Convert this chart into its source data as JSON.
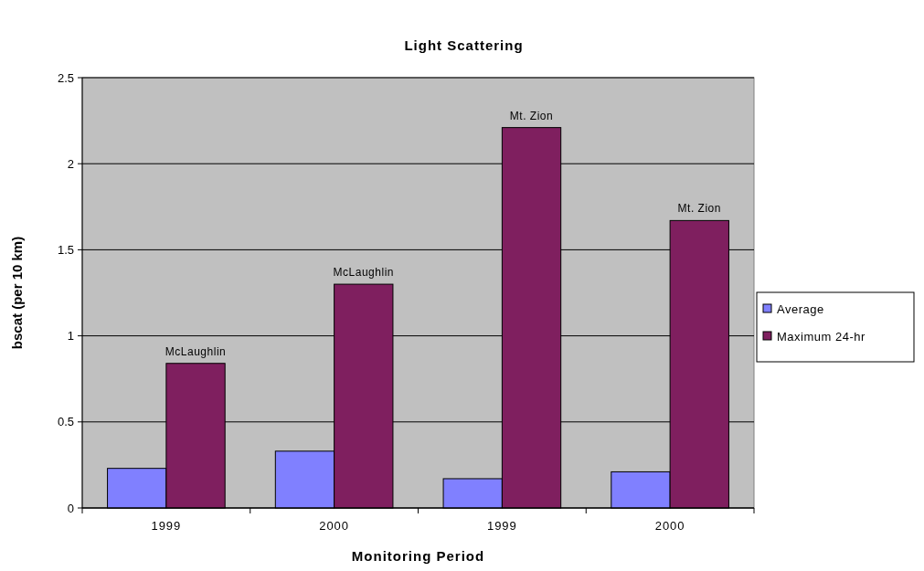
{
  "chart_data": {
    "type": "bar",
    "title": "Light Scattering",
    "xlabel": "Monitoring Period",
    "ylabel": "bscat (per 10 km)",
    "categories": [
      "1999",
      "2000",
      "1999",
      "2000"
    ],
    "series": [
      {
        "name": "Average",
        "color": "#8080ff",
        "values": [
          0.23,
          0.33,
          0.17,
          0.21
        ]
      },
      {
        "name": "Maximum 24-hr",
        "color": "#7f1f5f",
        "values": [
          0.84,
          1.3,
          2.21,
          1.67
        ]
      }
    ],
    "annotations": [
      "McLaughlin",
      "McLaughlin",
      "Mt. Zion",
      "Mt. Zion"
    ],
    "ylim": [
      0,
      2.5
    ],
    "yticks": [
      0,
      0.5,
      1,
      1.5,
      2,
      2.5
    ],
    "grid": "y",
    "legend": "right"
  }
}
